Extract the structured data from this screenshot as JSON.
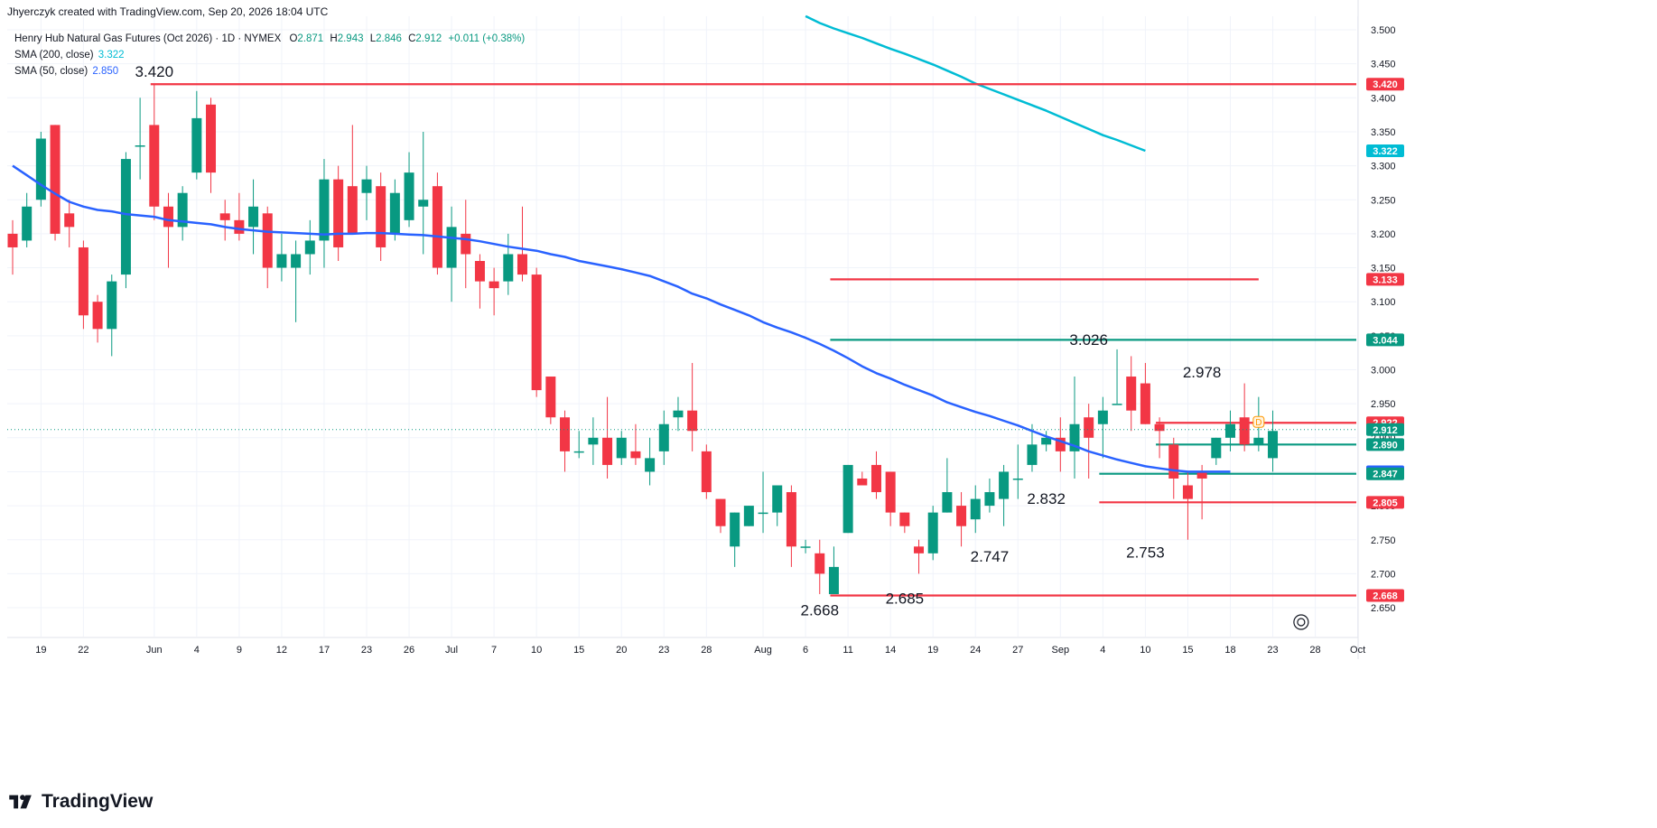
{
  "header": {
    "created_by": "Jhyerczyk created with TradingView.com, Sep 20, 2026 18:04 UTC"
  },
  "legend": {
    "symbol": "Henry Hub Natural Gas Futures (Oct 2026) · 1D · NYMEX",
    "o_label": "O",
    "o": "2.871",
    "h_label": "H",
    "h": "2.943",
    "l_label": "L",
    "l": "2.846",
    "c_label": "C",
    "c": "2.912",
    "change": "+0.011 (+0.38%)",
    "sma200_label": "SMA (200, close)",
    "sma200_value": "3.322",
    "sma50_label": "SMA (50, close)",
    "sma50_value": "2.850"
  },
  "brand": {
    "name": "TradingView",
    "icon": "tradingview-logo-icon"
  },
  "colors": {
    "up": "#089981",
    "down": "#f23645",
    "sma200": "#00bcd4",
    "sma50": "#2962ff",
    "grid": "#f0f3fa",
    "text": "#131722",
    "marker": "#ff9800"
  },
  "chart_data": {
    "type": "candlestick",
    "symbol": "Henry Hub Natural Gas Futures (Oct 2026)",
    "interval": "1D",
    "ylim": [
      2.62,
      3.52
    ],
    "y_ticks": [
      "2.650",
      "2.700",
      "2.750",
      "2.800",
      "2.850",
      "2.900",
      "2.950",
      "3.000",
      "3.050",
      "3.100",
      "3.150",
      "3.200",
      "3.250",
      "3.300",
      "3.350",
      "3.400",
      "3.450",
      "3.500"
    ],
    "x_ticks": [
      {
        "label": "19",
        "bar": 2
      },
      {
        "label": "22",
        "bar": 5
      },
      {
        "label": "Jun",
        "bar": 10
      },
      {
        "label": "4",
        "bar": 13
      },
      {
        "label": "9",
        "bar": 16
      },
      {
        "label": "12",
        "bar": 19
      },
      {
        "label": "17",
        "bar": 22
      },
      {
        "label": "23",
        "bar": 25
      },
      {
        "label": "26",
        "bar": 28
      },
      {
        "label": "Jul",
        "bar": 31
      },
      {
        "label": "7",
        "bar": 34
      },
      {
        "label": "10",
        "bar": 37
      },
      {
        "label": "15",
        "bar": 40
      },
      {
        "label": "20",
        "bar": 43
      },
      {
        "label": "23",
        "bar": 46
      },
      {
        "label": "28",
        "bar": 49
      },
      {
        "label": "Aug",
        "bar": 53
      },
      {
        "label": "6",
        "bar": 56
      },
      {
        "label": "11",
        "bar": 59
      },
      {
        "label": "14",
        "bar": 62
      },
      {
        "label": "19",
        "bar": 65
      },
      {
        "label": "24",
        "bar": 68
      },
      {
        "label": "27",
        "bar": 71
      },
      {
        "label": "Sep",
        "bar": 74
      },
      {
        "label": "4",
        "bar": 77
      },
      {
        "label": "10",
        "bar": 80
      },
      {
        "label": "15",
        "bar": 83
      },
      {
        "label": "18",
        "bar": 86
      },
      {
        "label": "23",
        "bar": 89
      },
      {
        "label": "28",
        "bar": 92
      },
      {
        "label": "Oct",
        "bar": 95
      }
    ],
    "candles": [
      [
        3.2,
        3.22,
        3.14,
        3.18
      ],
      [
        3.19,
        3.26,
        3.18,
        3.24
      ],
      [
        3.25,
        3.35,
        3.24,
        3.34
      ],
      [
        3.36,
        3.36,
        3.19,
        3.2
      ],
      [
        3.23,
        3.25,
        3.18,
        3.21
      ],
      [
        3.18,
        3.19,
        3.06,
        3.08
      ],
      [
        3.1,
        3.11,
        3.04,
        3.06
      ],
      [
        3.06,
        3.14,
        3.02,
        3.13
      ],
      [
        3.14,
        3.32,
        3.12,
        3.31
      ],
      [
        3.33,
        3.4,
        3.28,
        3.33
      ],
      [
        3.36,
        3.42,
        3.22,
        3.24
      ],
      [
        3.24,
        3.26,
        3.15,
        3.21
      ],
      [
        3.21,
        3.27,
        3.19,
        3.26
      ],
      [
        3.29,
        3.41,
        3.28,
        3.37
      ],
      [
        3.39,
        3.4,
        3.26,
        3.29
      ],
      [
        3.23,
        3.25,
        3.19,
        3.22
      ],
      [
        3.22,
        3.26,
        3.19,
        3.2
      ],
      [
        3.21,
        3.28,
        3.17,
        3.24
      ],
      [
        3.23,
        3.24,
        3.12,
        3.15
      ],
      [
        3.15,
        3.2,
        3.13,
        3.17
      ],
      [
        3.15,
        3.19,
        3.07,
        3.17
      ],
      [
        3.17,
        3.22,
        3.14,
        3.19
      ],
      [
        3.19,
        3.31,
        3.15,
        3.28
      ],
      [
        3.28,
        3.3,
        3.16,
        3.18
      ],
      [
        3.27,
        3.36,
        3.2,
        3.2
      ],
      [
        3.26,
        3.3,
        3.22,
        3.28
      ],
      [
        3.27,
        3.29,
        3.16,
        3.18
      ],
      [
        3.2,
        3.28,
        3.19,
        3.26
      ],
      [
        3.22,
        3.32,
        3.21,
        3.29
      ],
      [
        3.24,
        3.35,
        3.17,
        3.25
      ],
      [
        3.27,
        3.29,
        3.14,
        3.15
      ],
      [
        3.15,
        3.24,
        3.1,
        3.21
      ],
      [
        3.2,
        3.25,
        3.12,
        3.17
      ],
      [
        3.16,
        3.17,
        3.09,
        3.13
      ],
      [
        3.13,
        3.15,
        3.08,
        3.12
      ],
      [
        3.13,
        3.2,
        3.11,
        3.17
      ],
      [
        3.17,
        3.24,
        3.13,
        3.14
      ],
      [
        3.14,
        3.15,
        2.96,
        2.97
      ],
      [
        2.99,
        2.99,
        2.92,
        2.93
      ],
      [
        2.93,
        2.94,
        2.85,
        2.88
      ],
      [
        2.88,
        2.91,
        2.87,
        2.88
      ],
      [
        2.89,
        2.93,
        2.86,
        2.9
      ],
      [
        2.9,
        2.96,
        2.84,
        2.86
      ],
      [
        2.87,
        2.91,
        2.86,
        2.9
      ],
      [
        2.88,
        2.92,
        2.86,
        2.87
      ],
      [
        2.85,
        2.9,
        2.83,
        2.87
      ],
      [
        2.88,
        2.94,
        2.86,
        2.92
      ],
      [
        2.93,
        2.96,
        2.91,
        2.94
      ],
      [
        2.94,
        3.01,
        2.88,
        2.91
      ],
      [
        2.88,
        2.89,
        2.81,
        2.82
      ],
      [
        2.81,
        2.81,
        2.76,
        2.77
      ],
      [
        2.74,
        2.79,
        2.71,
        2.79
      ],
      [
        2.77,
        2.8,
        2.77,
        2.8
      ],
      [
        2.79,
        2.85,
        2.76,
        2.79
      ],
      [
        2.79,
        2.83,
        2.77,
        2.83
      ],
      [
        2.82,
        2.83,
        2.71,
        2.74
      ],
      [
        2.74,
        2.75,
        2.73,
        2.74
      ],
      [
        2.73,
        2.75,
        2.67,
        2.7
      ],
      [
        2.67,
        2.74,
        2.67,
        2.71
      ],
      [
        2.76,
        2.86,
        2.76,
        2.86
      ],
      [
        2.84,
        2.85,
        2.83,
        2.83
      ],
      [
        2.86,
        2.88,
        2.81,
        2.82
      ],
      [
        2.85,
        2.85,
        2.77,
        2.79
      ],
      [
        2.79,
        2.79,
        2.76,
        2.77
      ],
      [
        2.74,
        2.75,
        2.7,
        2.73
      ],
      [
        2.73,
        2.8,
        2.72,
        2.79
      ],
      [
        2.79,
        2.87,
        2.79,
        2.82
      ],
      [
        2.8,
        2.82,
        2.74,
        2.77
      ],
      [
        2.78,
        2.83,
        2.76,
        2.81
      ],
      [
        2.8,
        2.84,
        2.79,
        2.82
      ],
      [
        2.81,
        2.86,
        2.77,
        2.85
      ],
      [
        2.84,
        2.89,
        2.81,
        2.84
      ],
      [
        2.86,
        2.92,
        2.85,
        2.89
      ],
      [
        2.89,
        2.91,
        2.88,
        2.9
      ],
      [
        2.9,
        2.93,
        2.85,
        2.88
      ],
      [
        2.88,
        2.99,
        2.84,
        2.92
      ],
      [
        2.93,
        2.95,
        2.84,
        2.9
      ],
      [
        2.92,
        2.96,
        2.87,
        2.94
      ],
      [
        2.95,
        3.03,
        2.95,
        2.95
      ],
      [
        2.99,
        3.02,
        2.91,
        2.94
      ],
      [
        2.98,
        3.01,
        2.92,
        2.92
      ],
      [
        2.92,
        2.93,
        2.87,
        2.91
      ],
      [
        2.89,
        2.9,
        2.81,
        2.84
      ],
      [
        2.83,
        2.85,
        2.75,
        2.81
      ],
      [
        2.85,
        2.86,
        2.78,
        2.84
      ],
      [
        2.87,
        2.9,
        2.86,
        2.9
      ],
      [
        2.9,
        2.94,
        2.88,
        2.92
      ],
      [
        2.93,
        2.98,
        2.88,
        2.89
      ],
      [
        2.89,
        2.96,
        2.88,
        2.9
      ],
      [
        2.87,
        2.94,
        2.85,
        2.91
      ]
    ],
    "sma50": {
      "start_bar": 0,
      "values": [
        3.3,
        3.286,
        3.272,
        3.259,
        3.247,
        3.24,
        3.235,
        3.233,
        3.229,
        3.227,
        3.225,
        3.22,
        3.218,
        3.216,
        3.214,
        3.21,
        3.207,
        3.205,
        3.203,
        3.202,
        3.201,
        3.2,
        3.199,
        3.2,
        3.2,
        3.201,
        3.201,
        3.2,
        3.199,
        3.198,
        3.196,
        3.194,
        3.192,
        3.189,
        3.185,
        3.181,
        3.178,
        3.175,
        3.17,
        3.166,
        3.16,
        3.156,
        3.152,
        3.148,
        3.143,
        3.138,
        3.13,
        3.122,
        3.112,
        3.105,
        3.096,
        3.088,
        3.08,
        3.07,
        3.062,
        3.055,
        3.047,
        3.038,
        3.028,
        3.017,
        3.005,
        2.995,
        2.987,
        2.978,
        2.97,
        2.962,
        2.952,
        2.945,
        2.938,
        2.932,
        2.925,
        2.918,
        2.91,
        2.902,
        2.895,
        2.888,
        2.88,
        2.874,
        2.868,
        2.863,
        2.858,
        2.855,
        2.852,
        2.85,
        2.85,
        2.85,
        2.85
      ]
    },
    "sma200": {
      "start_bar": 56,
      "values": [
        3.52,
        3.51,
        3.502,
        3.495,
        3.488,
        3.48,
        3.472,
        3.465,
        3.457,
        3.449,
        3.44,
        3.431,
        3.421,
        3.413,
        3.405,
        3.397,
        3.389,
        3.381,
        3.372,
        3.363,
        3.354,
        3.345,
        3.338,
        3.33,
        3.322
      ]
    },
    "horizontal_lines": [
      {
        "price": 3.42,
        "color": "#f23645",
        "from_bar": 10,
        "label": "3.420"
      },
      {
        "price": 3.133,
        "color": "#f23645",
        "from_bar": 58,
        "to_bar": 88,
        "label": "3.133"
      },
      {
        "price": 3.044,
        "color": "#089981",
        "from_bar": 58,
        "label": "3.044"
      },
      {
        "price": 2.922,
        "color": "#f23645",
        "from_bar": 81,
        "label": "2.922"
      },
      {
        "price": 2.89,
        "color": "#089981",
        "from_bar": 81,
        "label": "2.890"
      },
      {
        "price": 2.847,
        "color": "#089981",
        "from_bar": 77,
        "label": "2.847"
      },
      {
        "price": 2.805,
        "color": "#f23645",
        "from_bar": 77,
        "label": "2.805"
      },
      {
        "price": 2.668,
        "color": "#f23645",
        "from_bar": 58,
        "label": "2.668"
      }
    ],
    "price_tags": [
      {
        "price": 3.42,
        "label": "3.420",
        "color": "#f23645"
      },
      {
        "price": 3.322,
        "label": "3.322",
        "color": "#00bcd4"
      },
      {
        "price": 3.133,
        "label": "3.133",
        "color": "#f23645"
      },
      {
        "price": 3.044,
        "label": "3.044",
        "color": "#089981"
      },
      {
        "price": 2.922,
        "label": "2.922",
        "color": "#f23645"
      },
      {
        "price": 2.912,
        "label": "2.912",
        "color": "#089981"
      },
      {
        "price": 2.89,
        "label": "2.890",
        "color": "#089981"
      },
      {
        "price": 2.85,
        "label": "2.850",
        "color": "#2962ff"
      },
      {
        "price": 2.847,
        "label": "2.847",
        "color": "#089981"
      },
      {
        "price": 2.805,
        "label": "2.805",
        "color": "#f23645"
      },
      {
        "price": 2.668,
        "label": "2.668",
        "color": "#f23645"
      }
    ],
    "annotations": [
      {
        "text": "3.420",
        "bar": 10,
        "price": 3.42,
        "pos": "above"
      },
      {
        "text": "3.026",
        "bar": 76,
        "price": 3.026,
        "pos": "above"
      },
      {
        "text": "2.978",
        "bar": 84,
        "price": 2.978,
        "pos": "above"
      },
      {
        "text": "2.832",
        "bar": 73,
        "price": 2.832,
        "pos": "below"
      },
      {
        "text": "2.747",
        "bar": 69,
        "price": 2.747,
        "pos": "below"
      },
      {
        "text": "2.753",
        "bar": 80,
        "price": 2.753,
        "pos": "below"
      },
      {
        "text": "2.685",
        "bar": 63,
        "price": 2.685,
        "pos": "below"
      },
      {
        "text": "2.668",
        "bar": 57,
        "price": 2.668,
        "pos": "below"
      }
    ],
    "last_price": 2.912,
    "marker": {
      "text": "D",
      "bar": 88,
      "price": 2.922
    }
  }
}
